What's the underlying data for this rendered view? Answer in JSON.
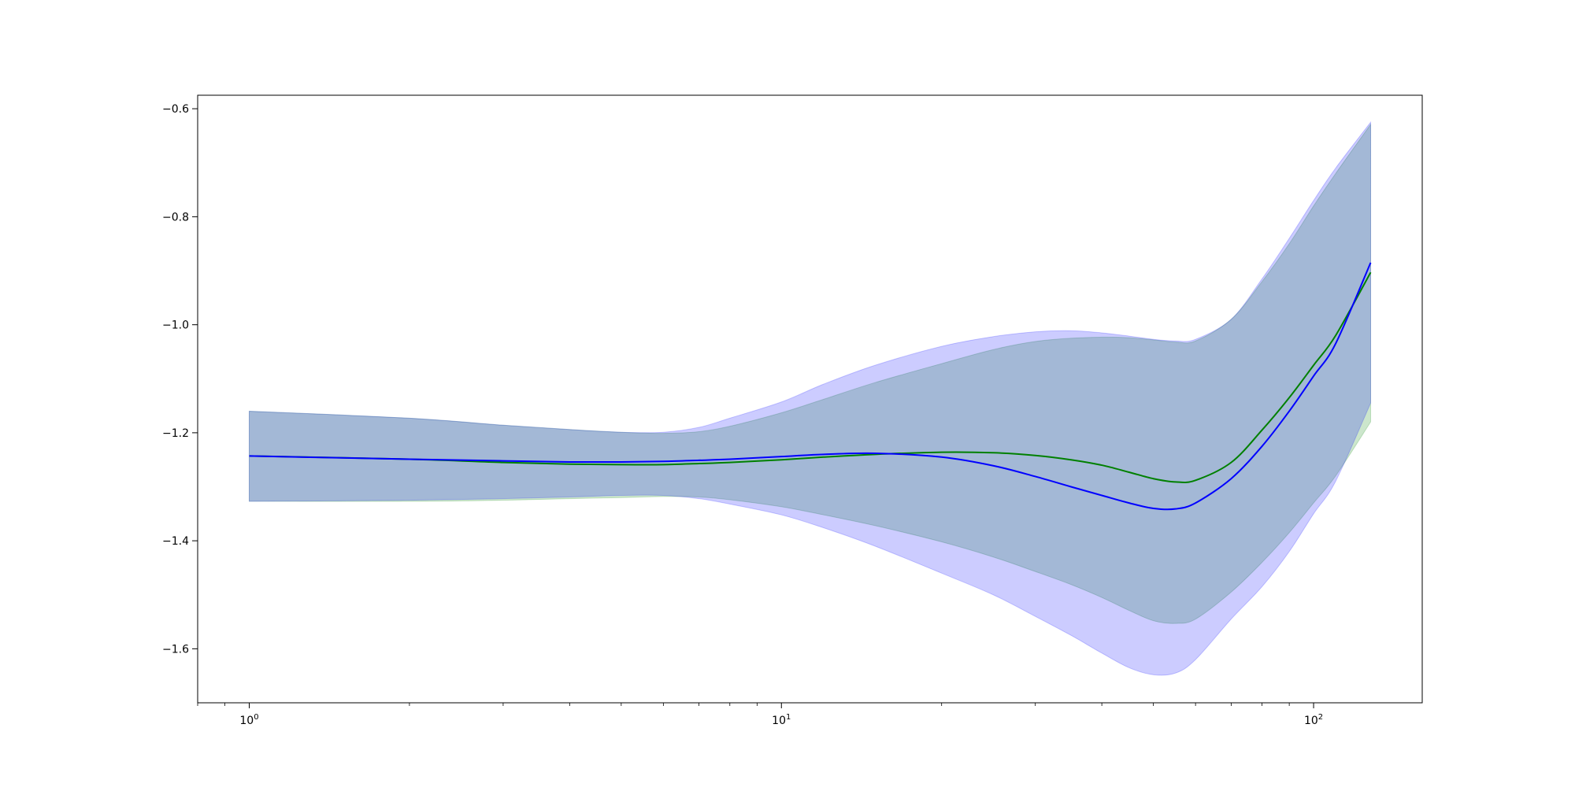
{
  "chart_data": {
    "type": "area",
    "title": "",
    "xlabel": "",
    "ylabel": "",
    "xscale": "log",
    "xlim": [
      0.8,
      160
    ],
    "ylim": [
      -1.7,
      -0.575
    ],
    "grid": false,
    "legend": "none",
    "x_ticks": [
      {
        "value": 1,
        "label_base": "10",
        "label_exp": "0"
      },
      {
        "value": 10,
        "label_base": "10",
        "label_exp": "1"
      },
      {
        "value": 100,
        "label_base": "10",
        "label_exp": "2"
      }
    ],
    "y_ticks": [
      {
        "value": -0.6,
        "label": "−0.6"
      },
      {
        "value": -0.8,
        "label": "−0.8"
      },
      {
        "value": -1.0,
        "label": "−1.0"
      },
      {
        "value": -1.2,
        "label": "−1.2"
      },
      {
        "value": -1.4,
        "label": "−1.4"
      },
      {
        "value": -1.6,
        "label": "−1.6"
      }
    ],
    "x": [
      1,
      2,
      3,
      4,
      5,
      6,
      7,
      8,
      10,
      12,
      15,
      20,
      25,
      30,
      35,
      40,
      45,
      50,
      55,
      60,
      70,
      80,
      90,
      100,
      110,
      128
    ],
    "series": [
      {
        "color": "#008000",
        "band_fill": "#008000",
        "band_opacity": 0.2,
        "mean": [
          -1.243,
          -1.249,
          -1.255,
          -1.258,
          -1.259,
          -1.259,
          -1.257,
          -1.255,
          -1.25,
          -1.245,
          -1.24,
          -1.236,
          -1.237,
          -1.242,
          -1.25,
          -1.26,
          -1.273,
          -1.285,
          -1.291,
          -1.288,
          -1.255,
          -1.195,
          -1.135,
          -1.075,
          -1.02,
          -0.903
        ],
        "upper": [
          -1.16,
          -1.173,
          -1.186,
          -1.194,
          -1.199,
          -1.201,
          -1.198,
          -1.188,
          -1.163,
          -1.138,
          -1.107,
          -1.072,
          -1.046,
          -1.031,
          -1.025,
          -1.023,
          -1.024,
          -1.028,
          -1.032,
          -1.03,
          -0.99,
          -0.92,
          -0.85,
          -0.78,
          -0.72,
          -0.629
        ],
        "lower": [
          -1.327,
          -1.327,
          -1.325,
          -1.322,
          -1.32,
          -1.318,
          -1.319,
          -1.324,
          -1.337,
          -1.352,
          -1.372,
          -1.402,
          -1.43,
          -1.457,
          -1.481,
          -1.505,
          -1.529,
          -1.548,
          -1.553,
          -1.545,
          -1.495,
          -1.44,
          -1.385,
          -1.33,
          -1.28,
          -1.18
        ]
      },
      {
        "color": "#0000ff",
        "band_fill": "#0000ff",
        "band_opacity": 0.2,
        "mean": [
          -1.243,
          -1.249,
          -1.252,
          -1.254,
          -1.254,
          -1.253,
          -1.251,
          -1.249,
          -1.244,
          -1.24,
          -1.238,
          -1.245,
          -1.261,
          -1.281,
          -1.3,
          -1.316,
          -1.33,
          -1.34,
          -1.341,
          -1.33,
          -1.285,
          -1.225,
          -1.16,
          -1.095,
          -1.035,
          -0.885
        ],
        "upper": [
          -1.16,
          -1.173,
          -1.186,
          -1.194,
          -1.199,
          -1.199,
          -1.19,
          -1.173,
          -1.143,
          -1.11,
          -1.075,
          -1.04,
          -1.022,
          -1.013,
          -1.011,
          -1.015,
          -1.021,
          -1.027,
          -1.03,
          -1.027,
          -0.99,
          -0.915,
          -0.84,
          -0.77,
          -0.71,
          -0.625
        ],
        "lower": [
          -1.327,
          -1.325,
          -1.322,
          -1.319,
          -1.316,
          -1.316,
          -1.322,
          -1.332,
          -1.352,
          -1.376,
          -1.41,
          -1.46,
          -1.5,
          -1.54,
          -1.575,
          -1.608,
          -1.635,
          -1.648,
          -1.645,
          -1.62,
          -1.545,
          -1.485,
          -1.42,
          -1.35,
          -1.29,
          -1.145
        ]
      }
    ]
  }
}
